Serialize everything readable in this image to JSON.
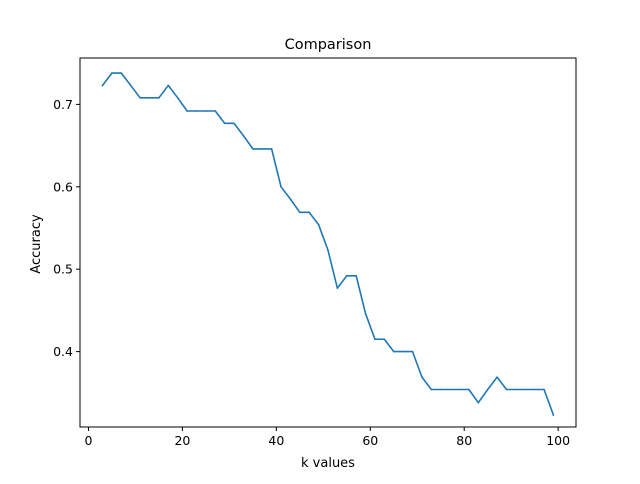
{
  "colors": {
    "background": "#ffffff",
    "line": "#1f77b4",
    "axes": "#000000"
  },
  "chart_data": {
    "type": "line",
    "title": "Comparison",
    "xlabel": "k values",
    "ylabel": "Accuracy",
    "xlim": [
      -1.8,
      103.8
    ],
    "ylim": [
      0.3085,
      0.7563
    ],
    "xticks": [
      0,
      20,
      40,
      60,
      80,
      100
    ],
    "yticks": [
      0.4,
      0.5,
      0.6,
      0.7
    ],
    "xtick_labels": [
      "0",
      "20",
      "40",
      "60",
      "80",
      "100"
    ],
    "ytick_labels": [
      "0.4",
      "0.5",
      "0.6",
      "0.7"
    ],
    "grid": false,
    "series": [
      {
        "x": [
          3,
          5,
          7,
          9,
          11,
          13,
          15,
          17,
          19,
          21,
          23,
          25,
          27,
          29,
          31,
          33,
          35,
          37,
          39,
          41,
          43,
          45,
          47,
          49,
          51,
          53,
          55,
          57,
          59,
          61,
          63,
          65,
          67,
          69,
          71,
          73,
          75,
          77,
          79,
          81,
          83,
          85,
          87,
          89,
          91,
          93,
          95,
          97,
          99
        ],
        "values": [
          0.723,
          0.738,
          0.738,
          0.723,
          0.708,
          0.708,
          0.708,
          0.723,
          0.708,
          0.692,
          0.692,
          0.692,
          0.692,
          0.677,
          0.677,
          0.662,
          0.646,
          0.646,
          0.646,
          0.6,
          0.585,
          0.569,
          0.569,
          0.554,
          0.523,
          0.477,
          0.492,
          0.492,
          0.446,
          0.415,
          0.415,
          0.4,
          0.4,
          0.4,
          0.369,
          0.354,
          0.354,
          0.354,
          0.354,
          0.354,
          0.338,
          0.354,
          0.369,
          0.354,
          0.354,
          0.354,
          0.354,
          0.354,
          0.323
        ]
      }
    ]
  }
}
